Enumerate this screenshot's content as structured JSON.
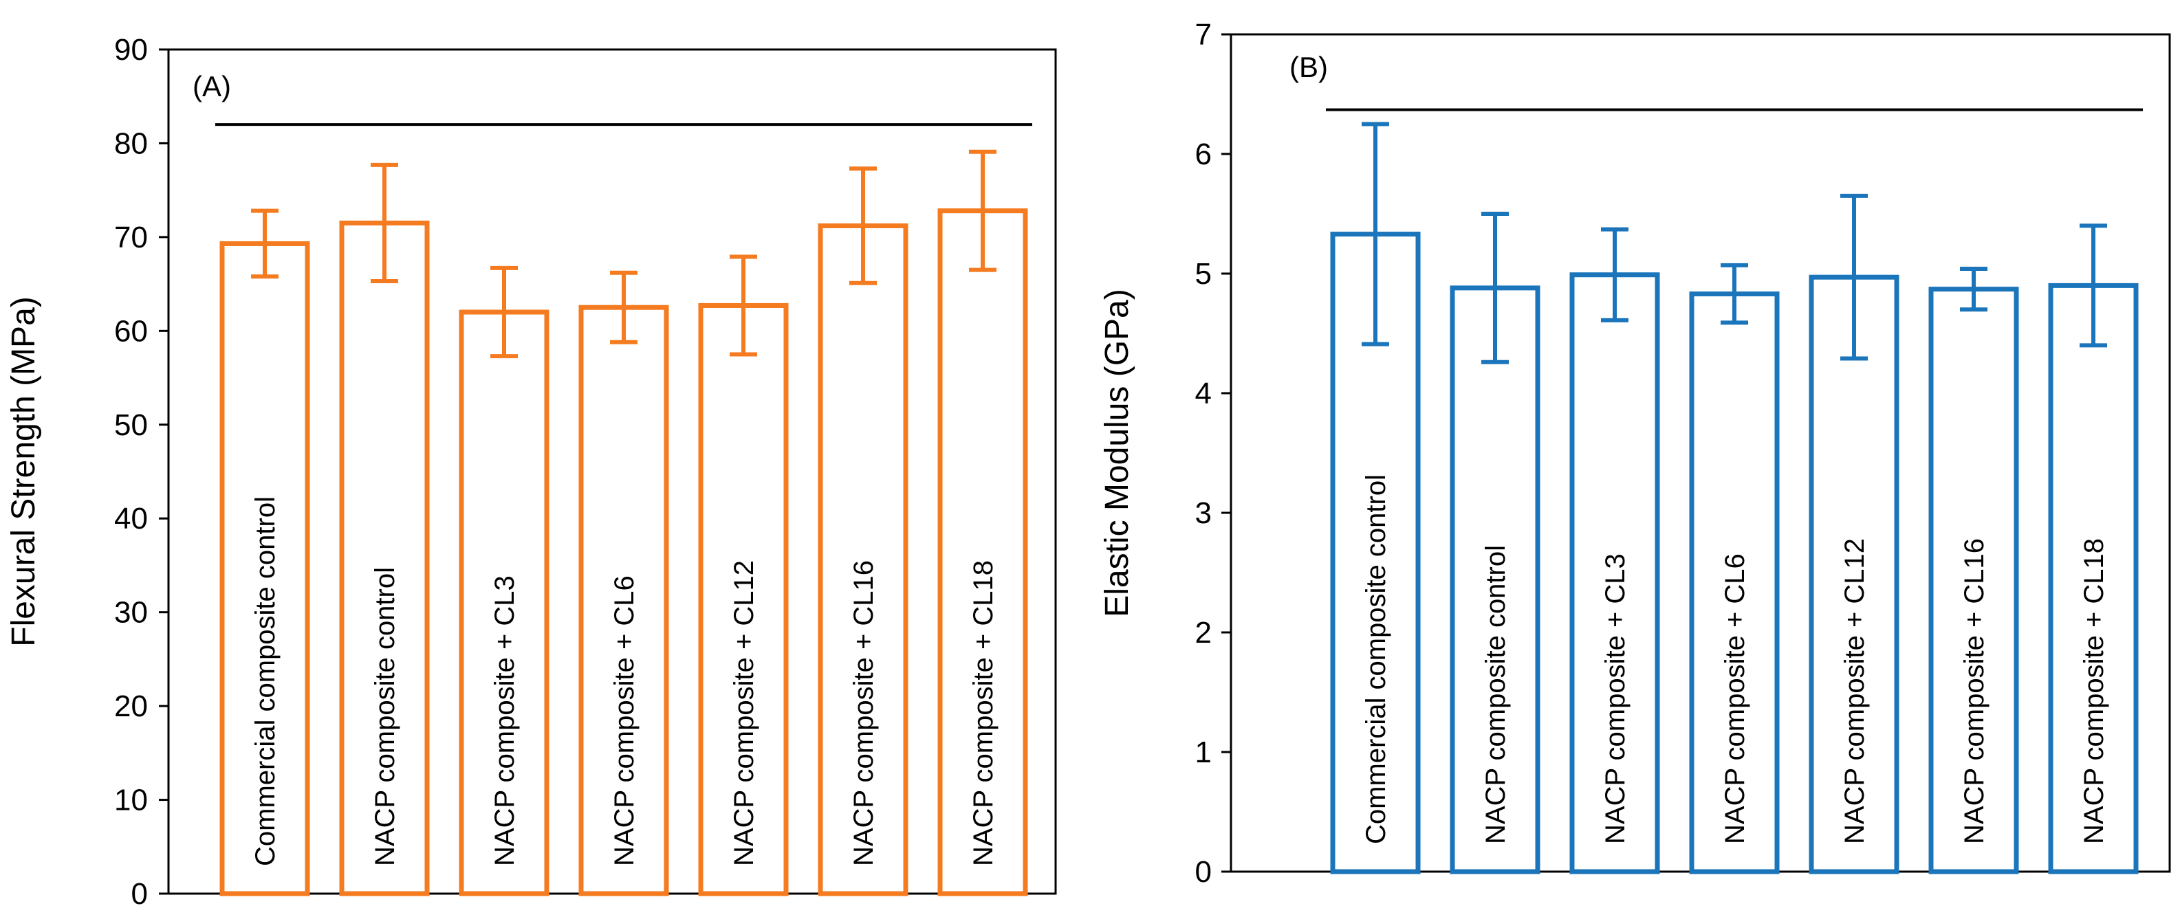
{
  "chart_data": [
    {
      "type": "bar",
      "panel_label": "(A)",
      "ylabel": "Flexural Strength (MPa)",
      "ylim": [
        0,
        90
      ],
      "yticks": [
        0,
        10,
        20,
        30,
        40,
        50,
        60,
        70,
        80,
        90
      ],
      "categories": [
        "Commercial composite control",
        "NACP composite control",
        "NACP composite + CL3",
        "NACP composite + CL6",
        "NACP composite + CL12",
        "NACP composite + CL16",
        "NACP composite + CL18"
      ],
      "values": [
        69.3,
        71.5,
        62.0,
        62.5,
        62.7,
        71.2,
        72.8
      ],
      "errors": [
        3.5,
        6.2,
        4.7,
        3.7,
        5.2,
        6.1,
        6.3
      ],
      "significance_line_y": 82,
      "color": "#F47B20",
      "grid": false,
      "legend": "none"
    },
    {
      "type": "bar",
      "panel_label": "(B)",
      "ylabel": "Elastic Modulus (GPa)",
      "ylim": [
        0,
        7
      ],
      "yticks": [
        0,
        1,
        2,
        3,
        4,
        5,
        6,
        7
      ],
      "categories": [
        "Commercial composite control",
        "NACP composite control",
        "NACP composite + CL3",
        "NACP composite + CL6",
        "NACP composite + CL12",
        "NACP composite + CL16",
        "NACP composite + CL18"
      ],
      "values": [
        5.33,
        4.88,
        4.99,
        4.83,
        4.97,
        4.87,
        4.9
      ],
      "errors": [
        0.92,
        0.62,
        0.38,
        0.24,
        0.68,
        0.17,
        0.5
      ],
      "significance_line_y": 6.37,
      "color": "#1B75BB",
      "grid": false,
      "legend": "none"
    }
  ]
}
